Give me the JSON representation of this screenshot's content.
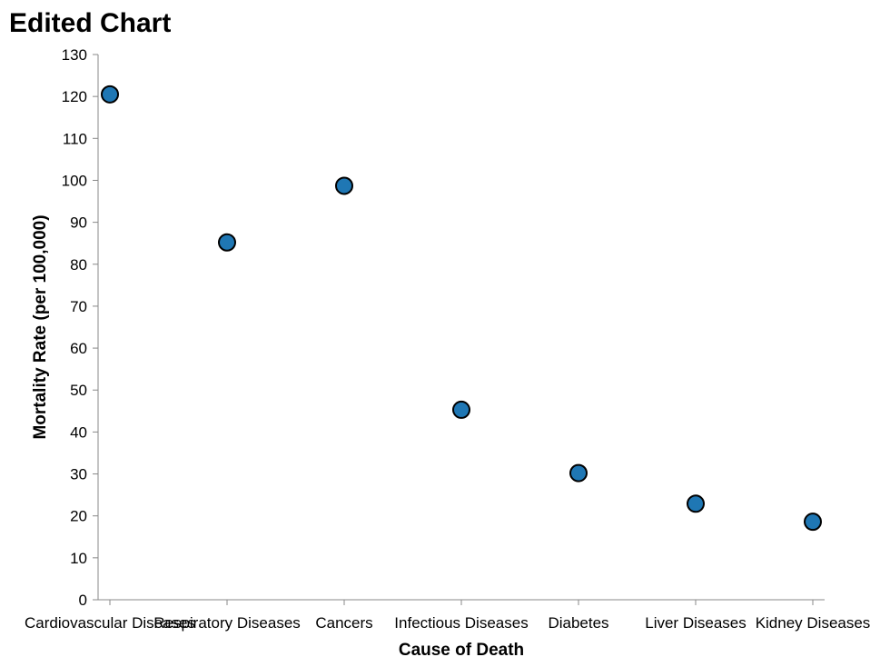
{
  "chart_data": {
    "type": "scatter",
    "title": "Edited Chart",
    "xlabel": "Cause of Death",
    "ylabel": "Mortality Rate (per 100,000)",
    "categories": [
      "Cardiovascular Diseases",
      "Respiratory Diseases",
      "Cancers",
      "Infectious Diseases",
      "Diabetes",
      "Liver Diseases",
      "Kidney Diseases"
    ],
    "values": [
      120.5,
      85.2,
      98.7,
      45.3,
      30.2,
      22.9,
      18.6
    ],
    "ylim": [
      0,
      130
    ],
    "yticks": [
      0,
      10,
      20,
      30,
      40,
      50,
      60,
      70,
      80,
      90,
      100,
      110,
      120,
      130
    ],
    "grid": false,
    "point_color": "#1f77b4",
    "point_stroke": "#000000"
  }
}
